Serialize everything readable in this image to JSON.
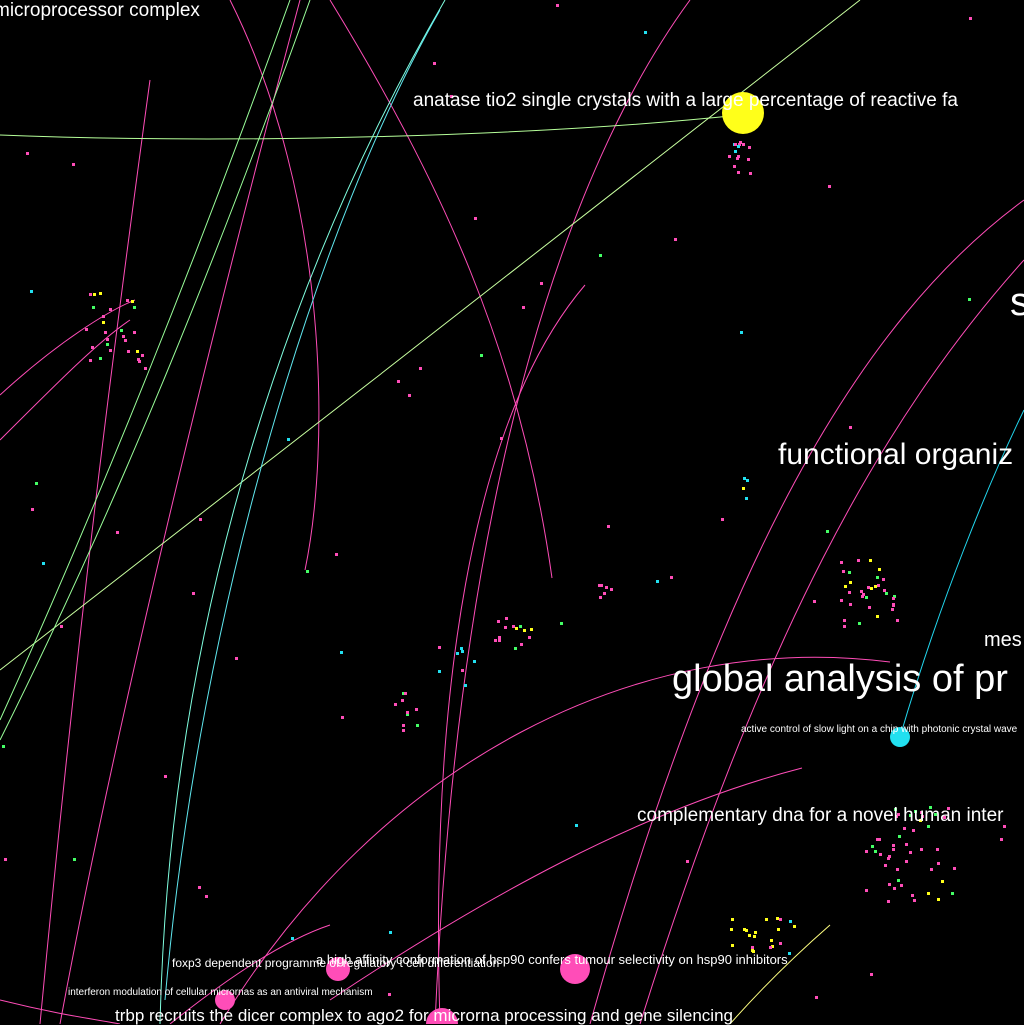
{
  "colors": {
    "background": "#000000",
    "pink": "#ff4db8",
    "yellow": "#ffff1a",
    "cyan": "#22e0f0",
    "green": "#44ff66",
    "label": "#ffffff"
  },
  "labels": {
    "microprocessor": "microprocessor complex",
    "anatase": "anatase tio2 single crystals with a large percentage of reactive fa",
    "s_partial": "s",
    "functional": "functional organiz",
    "mes_partial": "mes",
    "global": "global analysis of pr",
    "slow_light": "active control of slow light on a chip with photonic crystal wave",
    "cdna": "complementary dna for a novel human inter",
    "foxp3": "foxp3 dependent programme of regulatory t cell differentiation",
    "hsp90": "a high affinity conformation of hsp90 confers tumour selectivity on hsp90 inhibitors",
    "interferon": "interferon modulation of cellular micrornas as an antiviral mechanism",
    "trbp": "trbp recruits the dicer complex to ago2 for microrna processing and gene silencing"
  }
}
